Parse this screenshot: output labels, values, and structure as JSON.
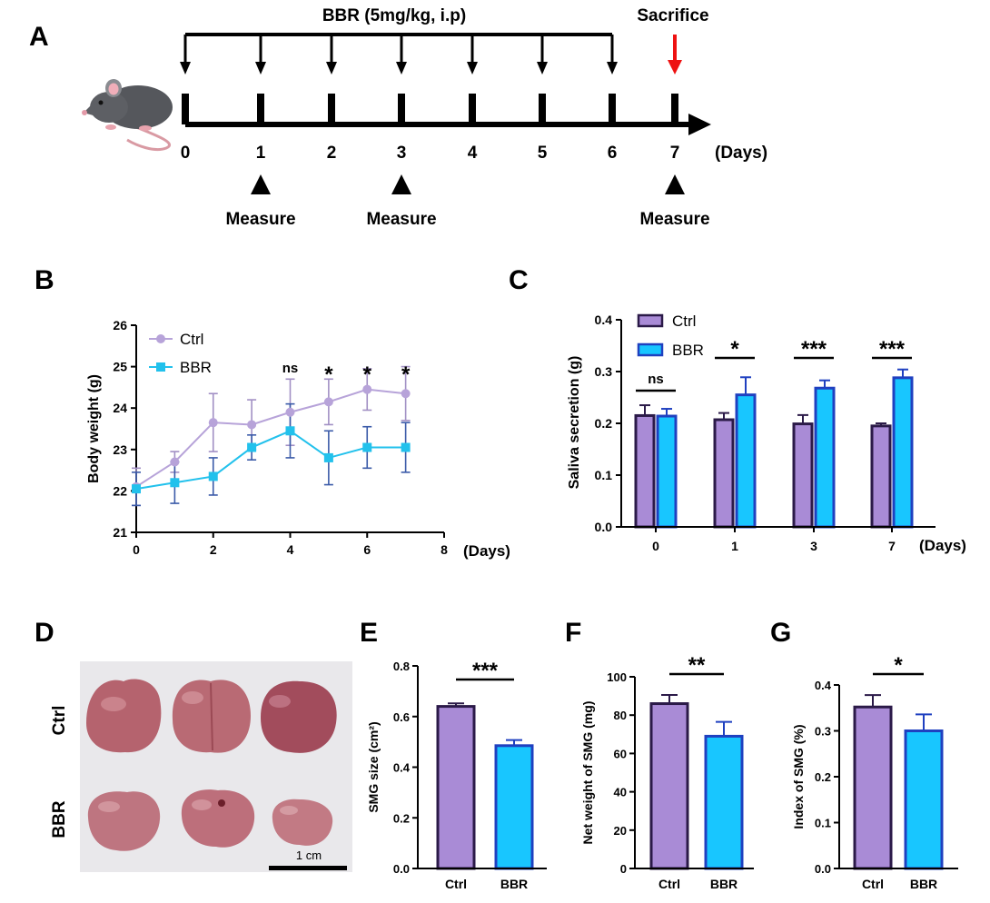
{
  "panel_labels": {
    "a": "A",
    "b": "B",
    "c": "C",
    "d": "D",
    "e": "E",
    "f": "F",
    "g": "G"
  },
  "timeline": {
    "treatment_label": "BBR (5mg/kg, i.p)",
    "sacrifice_label": "Sacrifice",
    "days_unit": "(Days)",
    "day_ticks": [
      "0",
      "1",
      "2",
      "3",
      "4",
      "5",
      "6",
      "7"
    ],
    "measure_label": "Measure",
    "measure_days": [
      "1",
      "3",
      "7"
    ],
    "icon": "mouse-icon",
    "colors": {
      "line": "#000000",
      "sacrifice_arrow": "#ee1111"
    }
  },
  "photo": {
    "row_labels": [
      "Ctrl",
      "BBR"
    ],
    "scale_bar_label": "1 cm",
    "colors": {
      "background": "#e9e8eb",
      "tissue": "#b5636e"
    }
  },
  "colors": {
    "ctrl_line": "#b7a3d9",
    "bbr_line": "#22c1ec",
    "ctrl_bar": "#a98bd6",
    "ctrl_bar_edge": "#2b1a48",
    "bbr_bar": "#18c6ff",
    "bbr_bar_edge": "#1f40c0",
    "error_bar": "#3a5aa8"
  },
  "chart_data": [
    {
      "id": "B",
      "type": "line",
      "title": "",
      "xlabel": "(Days)",
      "ylabel": "Body weight (g)",
      "xlim": [
        0,
        8
      ],
      "ylim": [
        21,
        26
      ],
      "xticks": [
        "0",
        "2",
        "4",
        "6",
        "8"
      ],
      "yticks": [
        "21",
        "22",
        "23",
        "24",
        "25",
        "26"
      ],
      "legend": [
        "Ctrl",
        "BBR"
      ],
      "legend_position": "top-left",
      "x": [
        0,
        1,
        2,
        3,
        4,
        5,
        6,
        7
      ],
      "series": [
        {
          "name": "Ctrl",
          "values": [
            22.1,
            22.7,
            23.65,
            23.6,
            23.9,
            24.15,
            24.45,
            24.35
          ],
          "errors": [
            0.45,
            0.25,
            0.7,
            0.6,
            0.8,
            0.55,
            0.5,
            0.65
          ]
        },
        {
          "name": "BBR",
          "values": [
            22.05,
            22.2,
            22.35,
            23.05,
            23.45,
            22.8,
            23.05,
            23.05
          ],
          "errors": [
            0.4,
            0.5,
            0.45,
            0.3,
            0.65,
            0.65,
            0.5,
            0.6
          ]
        }
      ],
      "annotations": [
        {
          "x": 4,
          "label": "ns"
        },
        {
          "x": 5,
          "label": "*"
        },
        {
          "x": 6,
          "label": "*"
        },
        {
          "x": 7,
          "label": "*"
        }
      ]
    },
    {
      "id": "C",
      "type": "bar",
      "title": "",
      "xlabel": "(Days)",
      "ylabel": "Saliva secretion (g)",
      "ylim": [
        0,
        0.4
      ],
      "yticks": [
        "0.0",
        "0.1",
        "0.2",
        "0.3",
        "0.4"
      ],
      "categories": [
        "0",
        "1",
        "3",
        "7"
      ],
      "legend": [
        "Ctrl",
        "BBR"
      ],
      "legend_position": "top-left",
      "series": [
        {
          "name": "Ctrl",
          "values": [
            0.215,
            0.207,
            0.199,
            0.195
          ],
          "errors": [
            0.02,
            0.013,
            0.017,
            0.005
          ]
        },
        {
          "name": "BBR",
          "values": [
            0.214,
            0.255,
            0.268,
            0.288
          ],
          "errors": [
            0.014,
            0.034,
            0.015,
            0.016
          ]
        }
      ],
      "significance": [
        "ns",
        "*",
        "***",
        "***"
      ]
    },
    {
      "id": "E",
      "type": "bar",
      "title": "",
      "xlabel": "",
      "ylabel": "SMG size (cm²)",
      "ylim": [
        0,
        0.8
      ],
      "yticks": [
        "0.0",
        "0.2",
        "0.4",
        "0.6",
        "0.8"
      ],
      "categories": [
        "Ctrl",
        "BBR"
      ],
      "values": [
        0.64,
        0.485
      ],
      "errors": [
        0.012,
        0.022
      ],
      "significance": "***"
    },
    {
      "id": "F",
      "type": "bar",
      "title": "",
      "xlabel": "",
      "ylabel": "Net weight of SMG (mg)",
      "ylim": [
        0,
        100
      ],
      "yticks": [
        "0",
        "20",
        "40",
        "60",
        "80",
        "100"
      ],
      "categories": [
        "Ctrl",
        "BBR"
      ],
      "values": [
        86,
        69
      ],
      "errors": [
        4.5,
        7.5
      ],
      "significance": "**"
    },
    {
      "id": "G",
      "type": "bar",
      "title": "",
      "xlabel": "",
      "ylabel": "Index of SMG (%)",
      "ylim": [
        0,
        0.4
      ],
      "yticks": [
        "0.0",
        "0.1",
        "0.2",
        "0.3",
        "0.4"
      ],
      "categories": [
        "Ctrl",
        "BBR"
      ],
      "values": [
        0.352,
        0.3
      ],
      "errors": [
        0.026,
        0.036
      ],
      "significance": "*"
    }
  ]
}
